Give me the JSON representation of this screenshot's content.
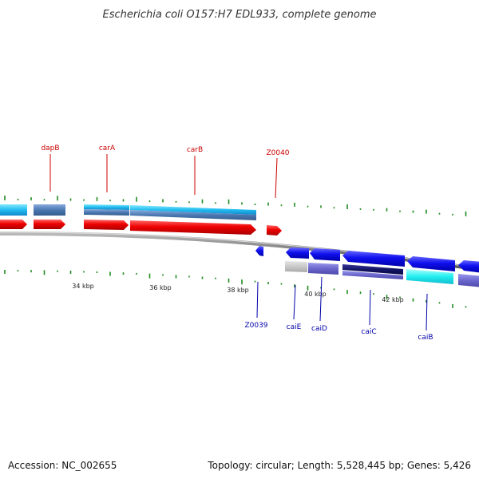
{
  "title": "Escherichia coli O157:H7 EDL933, complete genome",
  "footer": {
    "accession": "Accession: NC_002655",
    "topology": "Topology: circular; Length: 5,528,445 bp; Genes: 5,426"
  },
  "colors": {
    "forward_label": "#cc0000",
    "reverse_label": "#0000aa",
    "gc_ticks": "#228B22",
    "backbone": "#777777"
  },
  "position_labels": [
    "34 kbp",
    "36 kbp",
    "38 kbp",
    "40 kbp",
    "42 kbp"
  ],
  "gene_labels": {
    "forward": [
      "dapB",
      "carA",
      "carB",
      "Z0040"
    ],
    "reverse": [
      "Z0039",
      "caiE",
      "caiD",
      "caiC",
      "caiB"
    ]
  }
}
